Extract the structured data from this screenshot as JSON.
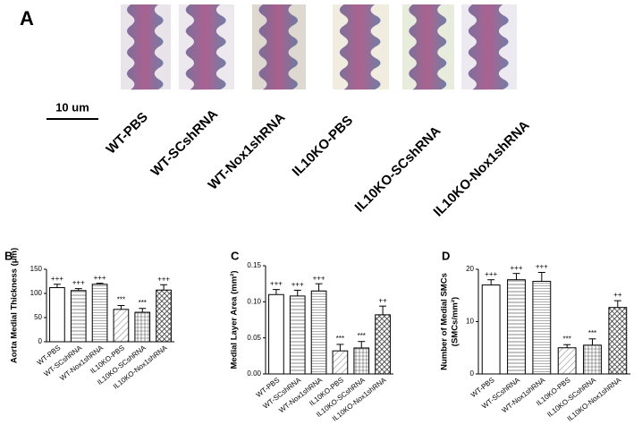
{
  "panel_a": {
    "label": "A",
    "scale_bar": "10 um",
    "images": [
      "WT-PBS",
      "WT-SCshRNA",
      "WT-Nox1shRNA",
      "IL10KO-PBS",
      "IL10KO-SCshRNA",
      "IL10KO-Nox1shRNA"
    ]
  },
  "chart_data": [
    {
      "type": "bar",
      "panel": "B",
      "y_label": "Aorta Medial Thickness (μm)",
      "categories": [
        "WT-PBS",
        "WT-SCshRNA",
        "WT-Nox1shRNA",
        "IL10KO-PBS",
        "IL10KO-SCshRNA",
        "IL10KO-Nox1shRNA"
      ],
      "values": [
        112,
        106,
        119,
        67,
        61,
        107
      ],
      "errors": [
        7,
        4,
        2,
        8,
        8,
        11
      ],
      "annotations": [
        "+++",
        "+++",
        "+++",
        "***",
        "***",
        "+++"
      ],
      "ylim": [
        0,
        150
      ],
      "yticks": [
        0,
        50,
        100,
        150
      ],
      "color": "#000000"
    },
    {
      "type": "bar",
      "panel": "C",
      "y_label": "Medial Layer Area (mm²)",
      "categories": [
        "WT-PBS",
        "WT-SCshRNA",
        "WT-Nox1shRNA",
        "IL10KO-PBS",
        "IL10KO-SCshRNA",
        "IL10KO-Nox1shRNA"
      ],
      "values": [
        0.11,
        0.108,
        0.115,
        0.032,
        0.036,
        0.082
      ],
      "errors": [
        0.007,
        0.008,
        0.01,
        0.009,
        0.009,
        0.012
      ],
      "annotations": [
        "+++",
        "+++",
        "+++",
        "***",
        "***",
        "++"
      ],
      "ylim": [
        0,
        0.15
      ],
      "yticks": [
        {
          "value": 0,
          "label": "0.00"
        },
        0.05,
        {
          "value": 0.1,
          "label": "0.10"
        },
        0.15
      ],
      "color": "#000000"
    },
    {
      "type": "bar",
      "panel": "D",
      "y_label": [
        "Number of Medial SMCs",
        "(SMCs/mm²)"
      ],
      "categories": [
        "WT-PBS",
        "WT-SCshRNA",
        "WT-Nox1shRNA",
        "IL10KO-PBS",
        "IL10KO-SCshRNA",
        "IL10KO-Nox1shRNA"
      ],
      "values": [
        17,
        18,
        17.7,
        5,
        5.5,
        12.7
      ],
      "errors": [
        1,
        1.2,
        1.7,
        0.6,
        1.2,
        1.3
      ],
      "annotations": [
        "+++",
        "+++",
        "+++",
        "***",
        "***",
        "++"
      ],
      "ylim": [
        0,
        20
      ],
      "yticks": [
        0,
        10,
        20
      ],
      "color": "#000000"
    }
  ]
}
